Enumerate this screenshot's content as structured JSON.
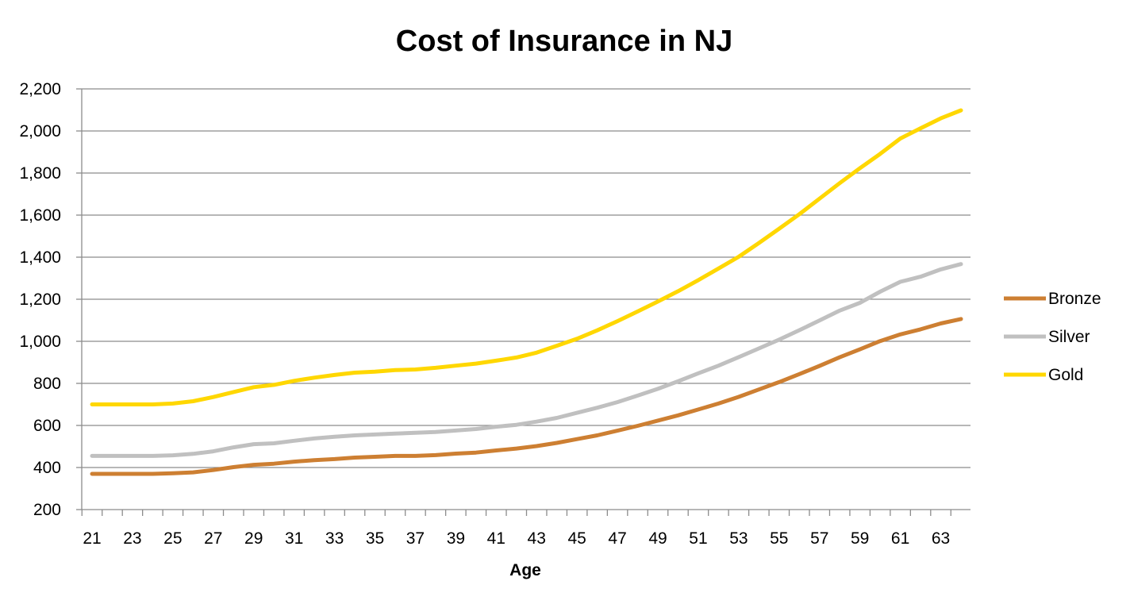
{
  "chart_data": {
    "type": "line",
    "title": "Cost of Insurance in NJ",
    "xlabel": "Age",
    "ylabel": "",
    "ylim": [
      200,
      2200
    ],
    "yticks": [
      200,
      400,
      600,
      800,
      1000,
      1200,
      1400,
      1600,
      1800,
      2000,
      2200
    ],
    "ytick_labels": [
      "200",
      "400",
      "600",
      "800",
      "1,000",
      "1,200",
      "1,400",
      "1,600",
      "1,800",
      "2,000",
      "2,200"
    ],
    "xticks": [
      21,
      23,
      25,
      27,
      29,
      31,
      33,
      35,
      37,
      39,
      41,
      43,
      45,
      47,
      49,
      51,
      53,
      55,
      57,
      59,
      61,
      63
    ],
    "xtick_labels": [
      "21",
      "23",
      "25",
      "27",
      "29",
      "31",
      "33",
      "35",
      "37",
      "39",
      "41",
      "43",
      "45",
      "47",
      "49",
      "51",
      "53",
      "55",
      "57",
      "59",
      "61",
      "63"
    ],
    "x": [
      21,
      22,
      23,
      24,
      25,
      26,
      27,
      28,
      29,
      30,
      31,
      32,
      33,
      34,
      35,
      36,
      37,
      38,
      39,
      40,
      41,
      42,
      43,
      44,
      45,
      46,
      47,
      48,
      49,
      50,
      51,
      52,
      53,
      54,
      55,
      56,
      57,
      58,
      59,
      60,
      61,
      62,
      63,
      64
    ],
    "grid": true,
    "legend_position": "right",
    "series": [
      {
        "name": "Bronze",
        "color": "#cd7f32",
        "values": [
          370,
          370,
          370,
          370,
          373,
          377,
          388,
          402,
          413,
          418,
          428,
          435,
          440,
          447,
          451,
          455,
          455,
          459,
          466,
          471,
          481,
          490,
          502,
          517,
          535,
          553,
          575,
          598,
          623,
          648,
          676,
          704,
          736,
          771,
          806,
          844,
          883,
          924,
          962,
          1001,
          1033,
          1057,
          1085,
          1106
        ]
      },
      {
        "name": "Silver",
        "color": "#c0c0c0",
        "values": [
          455,
          455,
          455,
          455,
          458,
          465,
          477,
          496,
          511,
          515,
          527,
          538,
          546,
          553,
          557,
          561,
          565,
          569,
          576,
          583,
          594,
          603,
          618,
          636,
          660,
          684,
          711,
          742,
          774,
          810,
          848,
          884,
          925,
          966,
          1008,
          1053,
          1099,
          1146,
          1183,
          1236,
          1283,
          1307,
          1342,
          1367
        ]
      },
      {
        "name": "Gold",
        "color": "#ffd700",
        "values": [
          700,
          700,
          700,
          700,
          704,
          715,
          735,
          759,
          782,
          793,
          812,
          827,
          840,
          851,
          856,
          863,
          866,
          874,
          884,
          894,
          908,
          923,
          946,
          979,
          1012,
          1052,
          1096,
          1142,
          1189,
          1238,
          1291,
          1346,
          1402,
          1467,
          1535,
          1604,
          1678,
          1752,
          1823,
          1891,
          1964,
          2013,
          2060,
          2098
        ]
      }
    ]
  }
}
